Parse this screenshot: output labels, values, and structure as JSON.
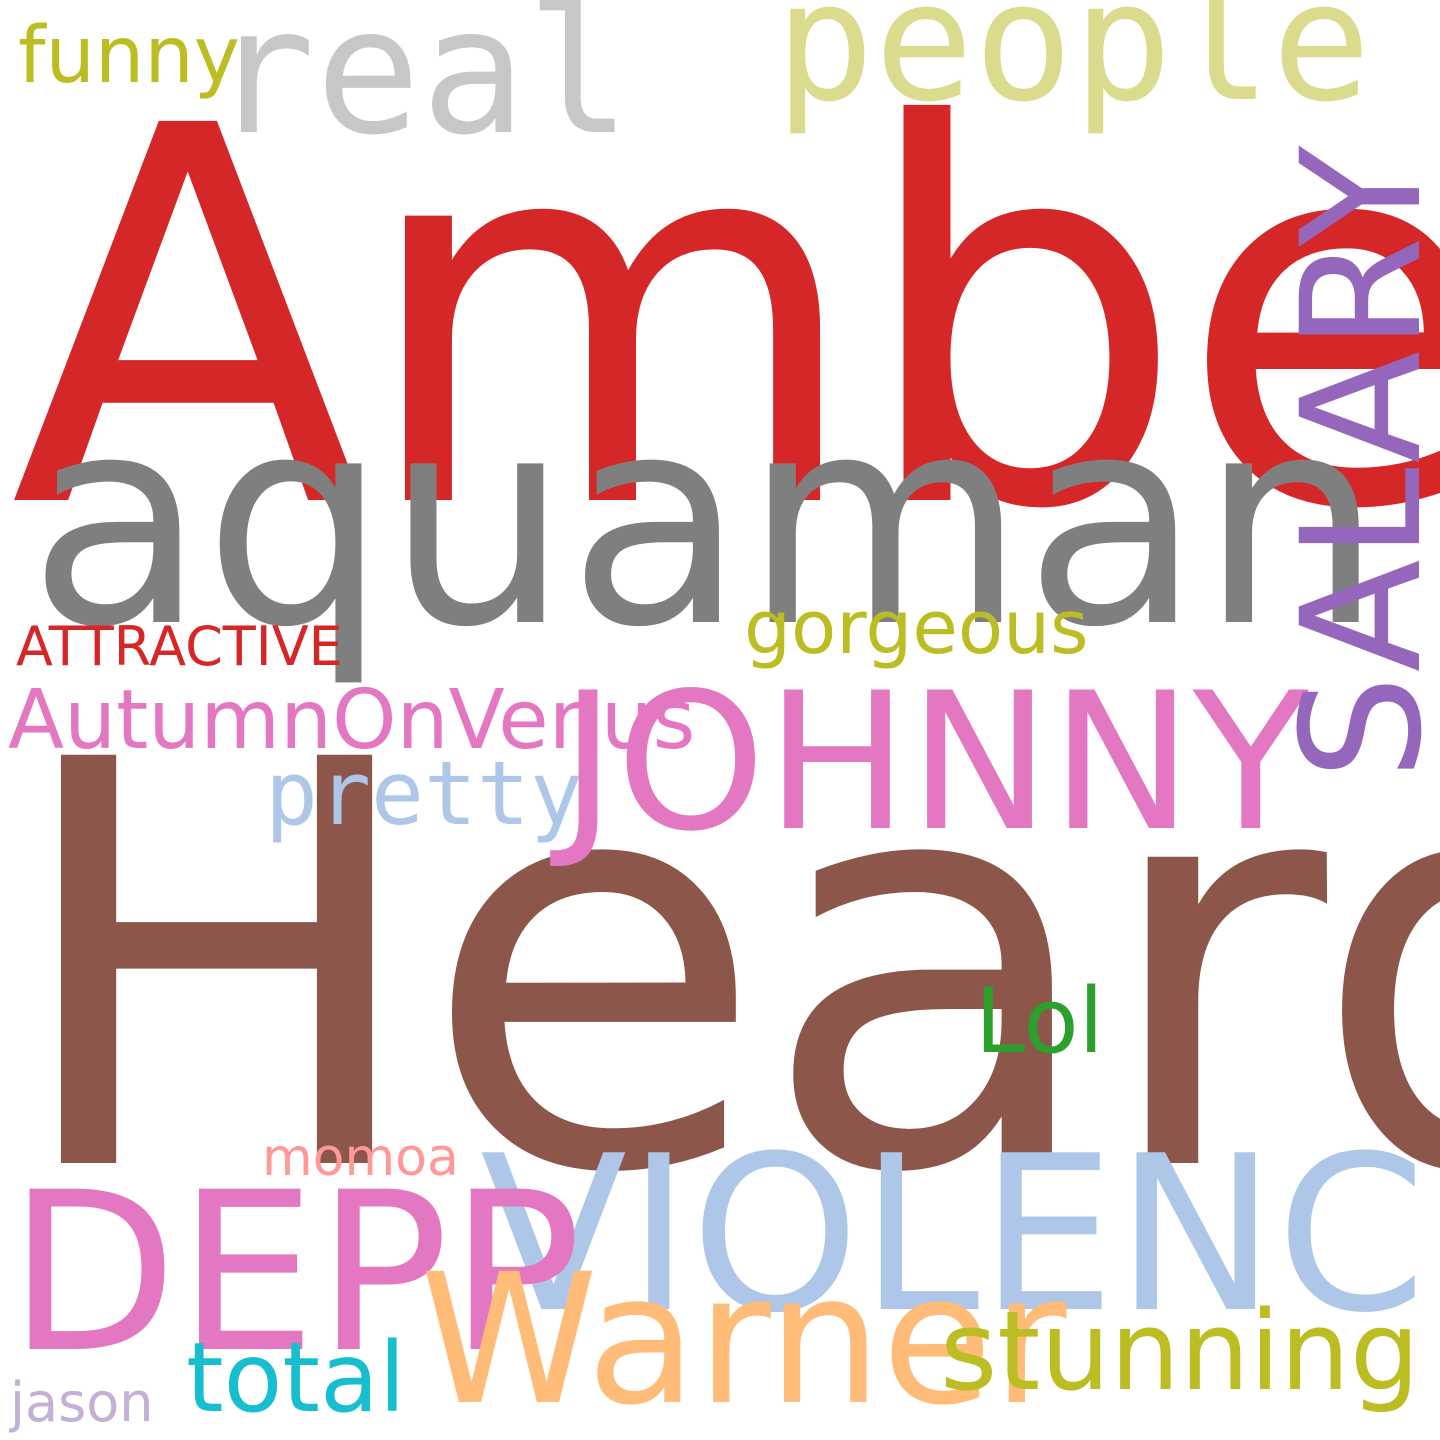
{
  "wordcloud": {
    "words": [
      {
        "id": "amber",
        "text": "Amber",
        "color": "#d62728"
      },
      {
        "id": "aquaman",
        "text": "aquaman",
        "color": "#7f7f7f"
      },
      {
        "id": "heard",
        "text": "Heard",
        "color": "#8c564b"
      },
      {
        "id": "violence",
        "text": "VIOLENCE",
        "color": "#aec7e8"
      },
      {
        "id": "depp",
        "text": "DEPP",
        "color": "#e377c2"
      },
      {
        "id": "warner",
        "text": "Warner",
        "color": "#ffbb78"
      },
      {
        "id": "stunning",
        "text": "stunning",
        "color": "#bcbd22"
      },
      {
        "id": "johnny",
        "text": "JOHNNY",
        "color": "#e377c2"
      },
      {
        "id": "salary",
        "text": "SALARY",
        "color": "#9467bd",
        "orientation": "vertical"
      },
      {
        "id": "people",
        "text": "people",
        "color": "#dbdb8d"
      },
      {
        "id": "real",
        "text": "real",
        "color": "#c7c7c7"
      },
      {
        "id": "funny",
        "text": "funny",
        "color": "#bcbd22"
      },
      {
        "id": "gorgeous",
        "text": "gorgeous",
        "color": "#bcbd22"
      },
      {
        "id": "attractive",
        "text": "ATTRACTIVE",
        "color": "#d62728"
      },
      {
        "id": "autumn",
        "text": "AutumnOnVenus",
        "color": "#e377c2"
      },
      {
        "id": "pretty",
        "text": "pretty",
        "color": "#aec7e8"
      },
      {
        "id": "lol",
        "text": "Lol",
        "color": "#2ca02c"
      },
      {
        "id": "momoa",
        "text": "momoa",
        "color": "#ff9896"
      },
      {
        "id": "total",
        "text": "total",
        "color": "#17becf"
      },
      {
        "id": "jason",
        "text": "jason",
        "color": "#c5b0d5"
      }
    ]
  }
}
